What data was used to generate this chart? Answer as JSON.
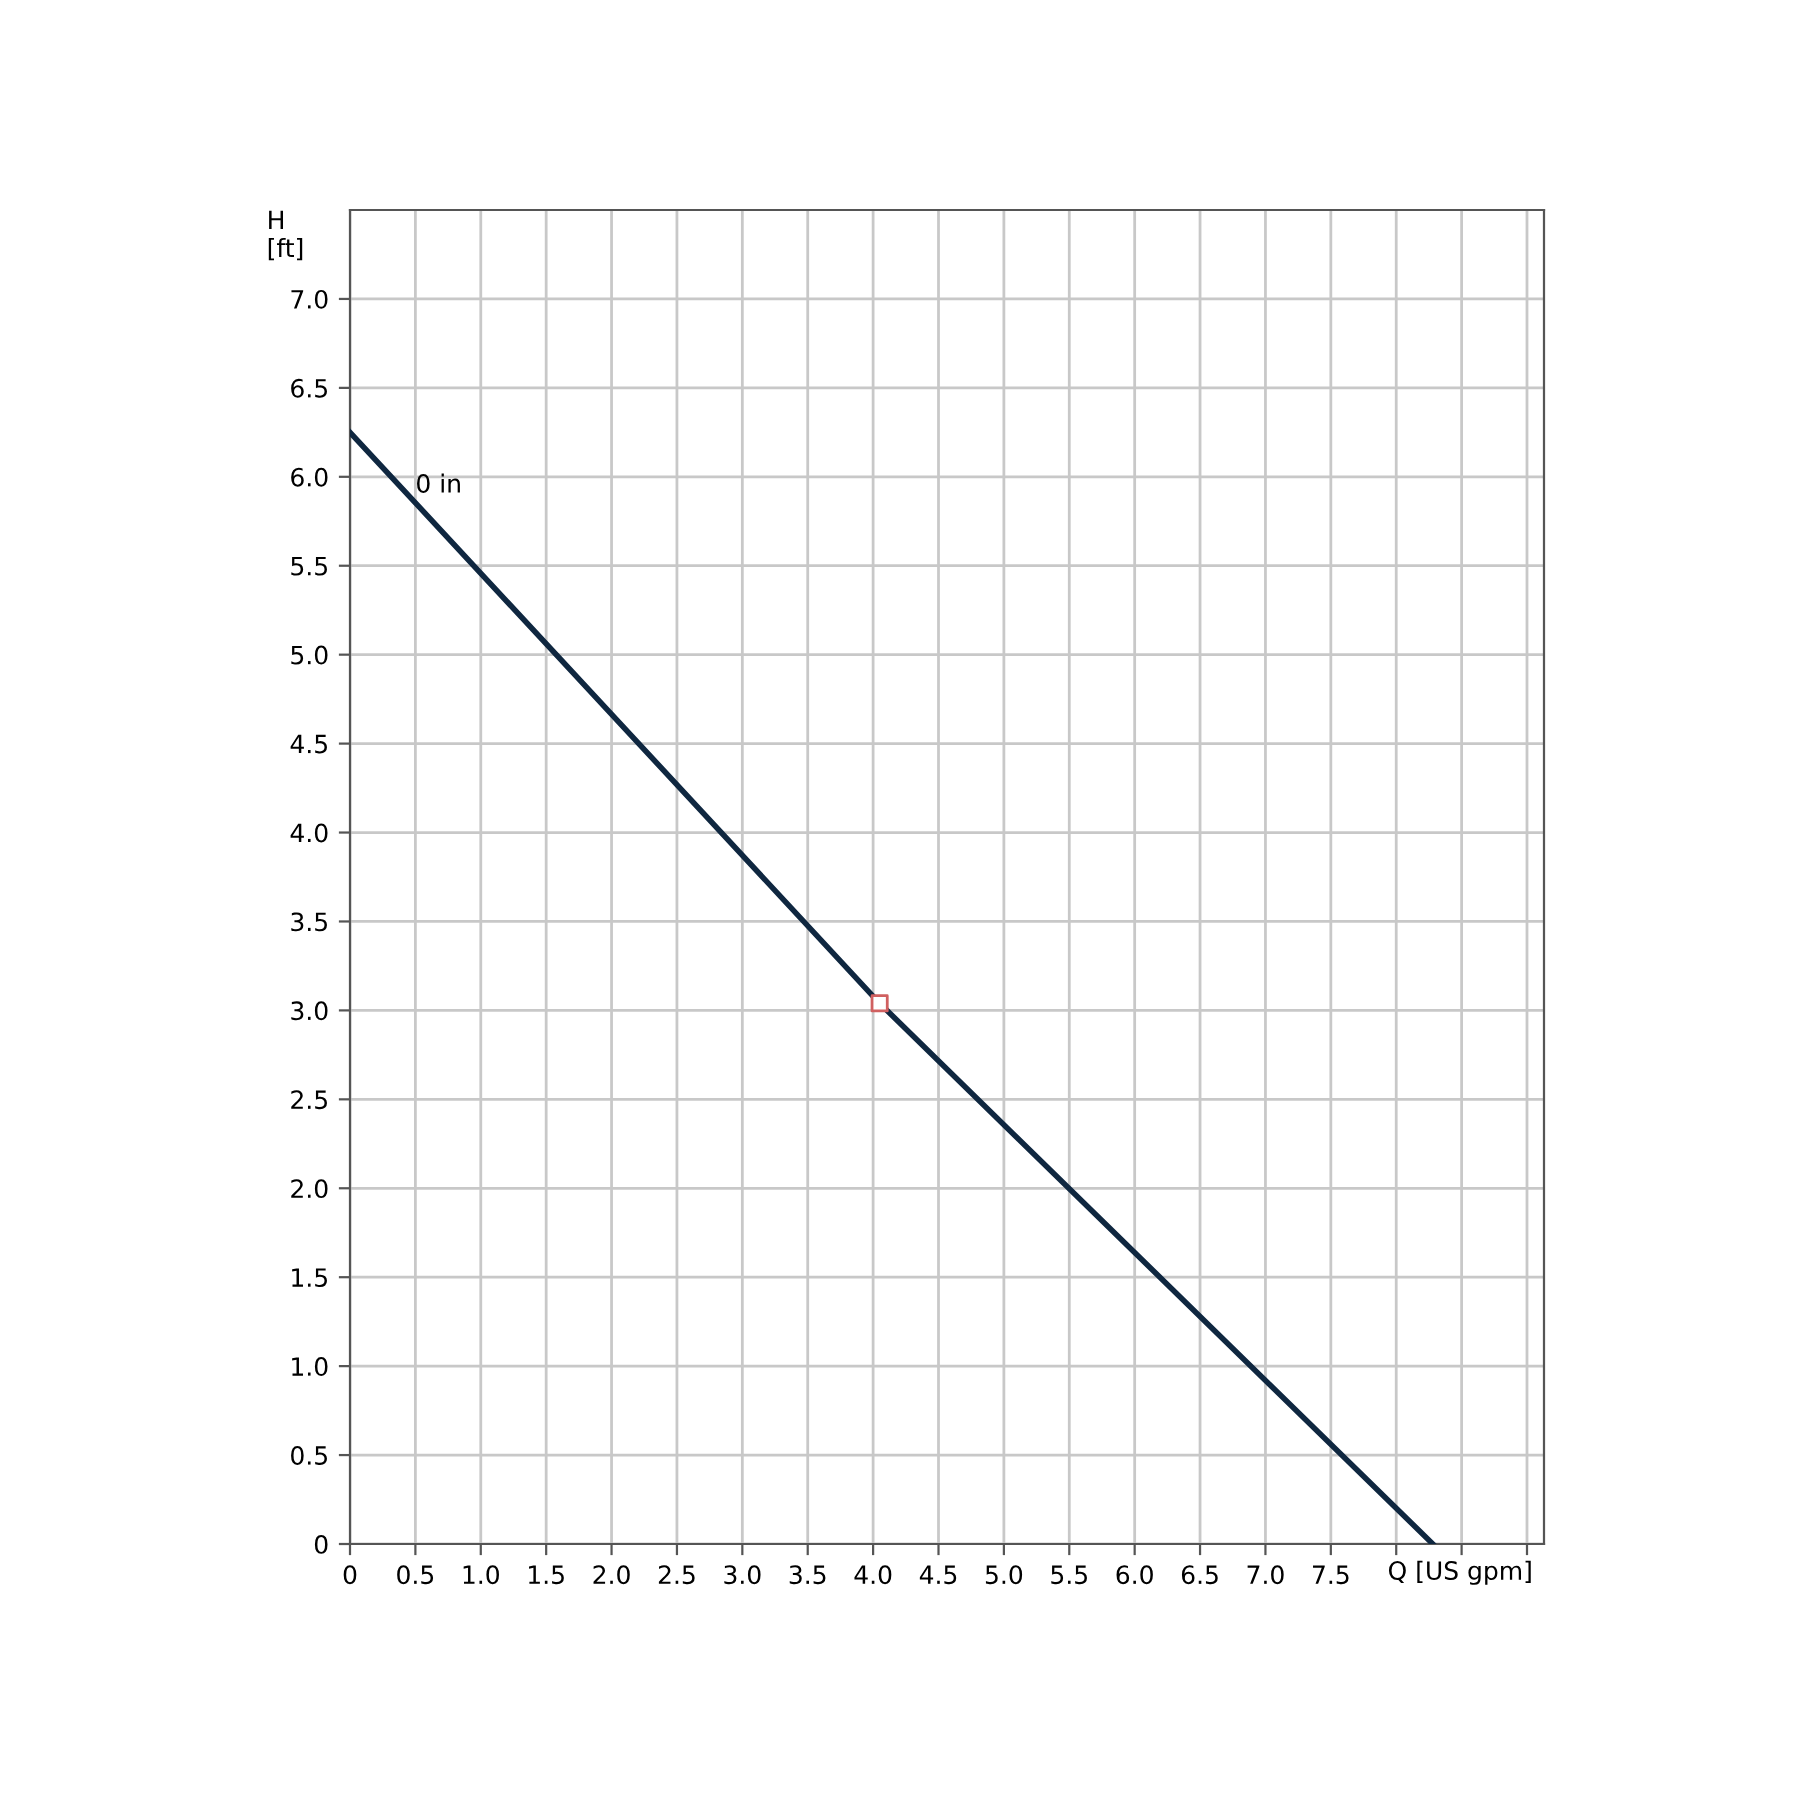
{
  "chart_data": {
    "type": "line",
    "xlabel": "Q [US gpm]",
    "ylabel": "H\n[ft]",
    "series": [
      {
        "color": "#0f2740",
        "x": [
          0,
          4.05,
          8.28
        ],
        "values": [
          6.25,
          3.04,
          0
        ],
        "marker": "none",
        "line_style": "solid"
      },
      {
        "type": "scatter",
        "color": "#d06060",
        "x": [
          4.05
        ],
        "values": [
          3.04
        ],
        "marker": "square"
      }
    ],
    "annotations": [
      {
        "text": "0 in",
        "x": 0.5,
        "y": 5.95
      }
    ],
    "xlim": [
      0,
      9.13
    ],
    "ylim": [
      0,
      7.5
    ],
    "xticks": [
      {
        "value": 0,
        "label": "0"
      },
      0.5,
      {
        "value": 1,
        "label": "1.0"
      },
      1.5,
      {
        "value": 2,
        "label": "2.0"
      },
      2.5,
      {
        "value": 3,
        "label": "3.0"
      },
      3.5,
      {
        "value": 4,
        "label": "4.0"
      },
      4.5,
      {
        "value": 5,
        "label": "5.0"
      },
      5.5,
      {
        "value": 6,
        "label": "6.0"
      },
      6.5,
      {
        "value": 7,
        "label": "7.0"
      },
      7.5,
      {
        "value": 8,
        "label": null
      },
      {
        "value": 8.5,
        "label": null
      },
      {
        "value": 9,
        "label": null
      }
    ],
    "yticks": [
      {
        "value": 0,
        "label": "0"
      },
      0.5,
      {
        "value": 1,
        "label": "1.0"
      },
      1.5,
      {
        "value": 2,
        "label": "2.0"
      },
      2.5,
      {
        "value": 3,
        "label": "3.0"
      },
      3.5,
      {
        "value": 4,
        "label": "4.0"
      },
      4.5,
      {
        "value": 5,
        "label": "5.0"
      },
      5.5,
      {
        "value": 6,
        "label": "6.0"
      },
      6.5,
      {
        "value": 7,
        "label": "7.0"
      }
    ],
    "grid": true,
    "legend": false
  }
}
